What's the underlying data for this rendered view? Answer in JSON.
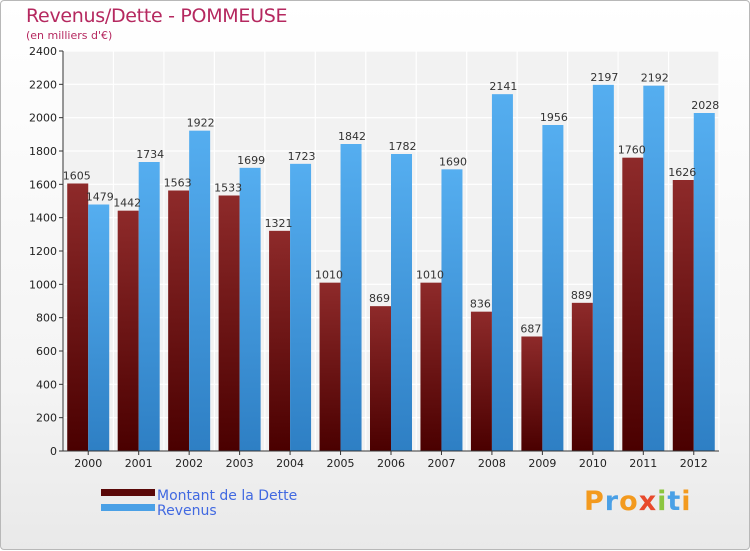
{
  "title": "Revenus/Dette - POMMEUSE",
  "subtitle": "(en milliers d'€)",
  "logo": "Proxiti",
  "chart_data": {
    "type": "bar",
    "categories": [
      "2000",
      "2001",
      "2002",
      "2003",
      "2004",
      "2005",
      "2006",
      "2007",
      "2008",
      "2009",
      "2010",
      "2011",
      "2012"
    ],
    "series": [
      {
        "name": "Montant de la Dette",
        "values": [
          1605,
          1442,
          1563,
          1533,
          1321,
          1010,
          869,
          1010,
          836,
          687,
          889,
          1760,
          1626
        ],
        "color": "#7b1a1a"
      },
      {
        "name": "Revenus",
        "values": [
          1479,
          1734,
          1922,
          1699,
          1723,
          1842,
          1782,
          1690,
          2141,
          1956,
          2197,
          2192,
          2028
        ],
        "color": "#4aa0e6"
      }
    ],
    "ylim": [
      0,
      2400
    ],
    "yticks": [
      0,
      200,
      400,
      600,
      800,
      1000,
      1200,
      1400,
      1600,
      1800,
      2000,
      2200,
      2400
    ],
    "grid": true,
    "legend_position": "bottom-left"
  }
}
